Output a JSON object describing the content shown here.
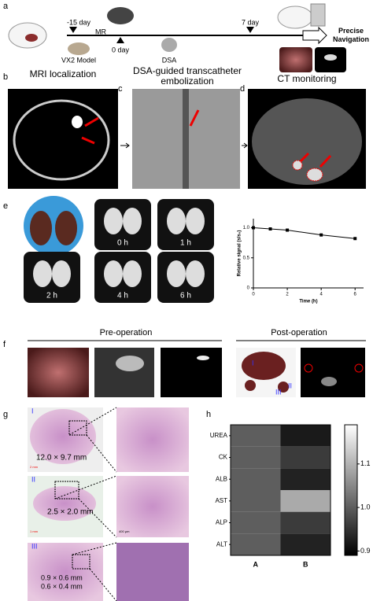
{
  "panels": {
    "a": {
      "label": "a",
      "minus15": "-15 day",
      "mr": "MR",
      "day0": "0 day",
      "model": "VX2 Model",
      "dsa": "DSA",
      "day7": "7 day",
      "nav": "Precise Navigation"
    },
    "b": {
      "label": "b",
      "title": "MRI localization"
    },
    "c": {
      "label": "c",
      "title": "DSA-guided transcatheter embolization"
    },
    "d": {
      "label": "d",
      "title": "CT monitoring"
    },
    "e": {
      "label": "e",
      "times": [
        "0 h",
        "1 h",
        "2 h",
        "4 h",
        "6 h"
      ]
    },
    "f": {
      "label": "f",
      "pre": "Pre-operation",
      "post": "Post-operation",
      "markers": [
        "I",
        "II",
        "III"
      ]
    },
    "g": {
      "label": "g",
      "rows": [
        {
          "id": "I",
          "sizes": [
            "12.0 × 9.7 mm"
          ],
          "scale": "2 mm"
        },
        {
          "id": "II",
          "sizes": [
            "2.5 × 2.0 mm"
          ],
          "scale": "1 mm",
          "zoom_scale": "400 μm"
        },
        {
          "id": "III",
          "sizes": [
            "0.9 × 0.6 mm",
            "0.6 × 0.4 mm"
          ]
        }
      ]
    },
    "h": {
      "label": "h"
    }
  },
  "chart_data": [
    {
      "type": "line",
      "xlabel": "Time (h)",
      "ylabel": "Relative signal (s/s₀)",
      "x": [
        0,
        1,
        2,
        4,
        6
      ],
      "values": [
        1.0,
        0.98,
        0.96,
        0.88,
        0.82
      ],
      "color": "#000000",
      "xlim": [
        0,
        6.5
      ],
      "ylim": [
        0,
        1.15
      ],
      "xticks": [
        0,
        2,
        4,
        6
      ],
      "yticks": [
        0,
        0.5,
        {
          "value": 1,
          "label": "1.0"
        }
      ]
    },
    {
      "type": "heatmap",
      "x": [
        "A",
        "B"
      ],
      "y": [
        "UREA",
        "CK",
        "ALB",
        "AST",
        "ALP",
        "ALT"
      ],
      "values": [
        [
          1.0,
          0.92
        ],
        [
          1.0,
          0.96
        ],
        [
          1.0,
          0.93
        ],
        [
          1.0,
          1.09
        ],
        [
          1.0,
          0.96
        ],
        [
          1.0,
          0.93
        ]
      ],
      "clim": [
        0.89,
        1.19
      ],
      "cticks": [
        0.9,
        {
          "value": 1,
          "label": "1.0"
        },
        1.1
      ]
    }
  ]
}
